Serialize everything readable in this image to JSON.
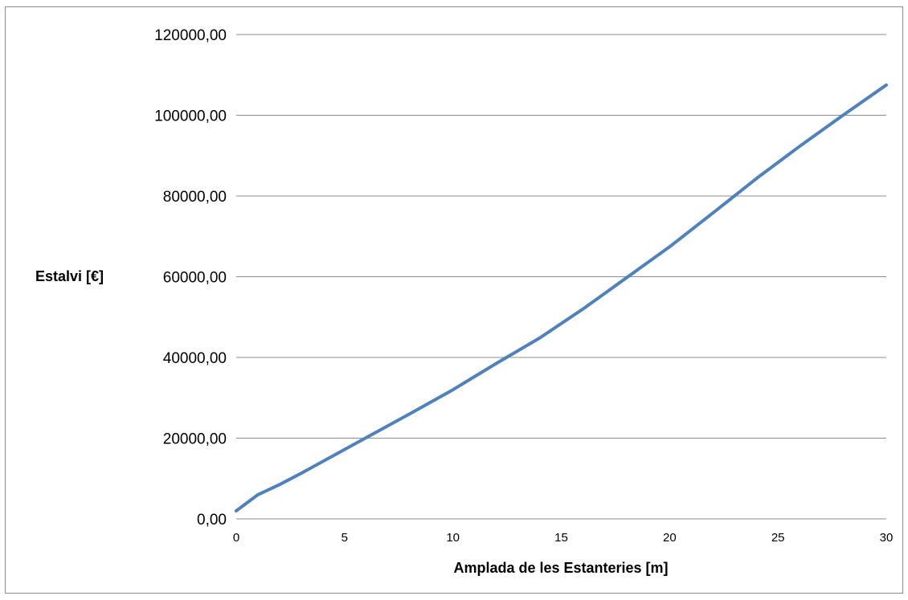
{
  "chart_data": {
    "type": "line",
    "title": "",
    "xlabel": "Amplada de les Estanteries [m]",
    "ylabel": "Estalvi [€]",
    "xlim": [
      0,
      30
    ],
    "ylim": [
      0,
      120000
    ],
    "x_ticks": [
      0,
      5,
      10,
      15,
      20,
      25,
      30
    ],
    "x_tick_labels": [
      "0",
      "5",
      "10",
      "15",
      "20",
      "25",
      "30"
    ],
    "y_ticks": [
      0,
      20000,
      40000,
      60000,
      80000,
      100000,
      120000
    ],
    "y_tick_labels": [
      "0,00",
      "20000,00",
      "40000,00",
      "60000,00",
      "80000,00",
      "100000,00",
      "120000,00"
    ],
    "grid": "horizontal",
    "legend": "none",
    "series": [
      {
        "color": "#4f81bd",
        "x": [
          0,
          1,
          2,
          3,
          5,
          8,
          10,
          12,
          14,
          16,
          18,
          20,
          22,
          24,
          26,
          28,
          30
        ],
        "y": [
          2000,
          6000,
          8500,
          11300,
          17200,
          26000,
          32000,
          38500,
          44800,
          52000,
          59700,
          67400,
          75800,
          84300,
          92300,
          100000,
          107500
        ]
      }
    ]
  }
}
